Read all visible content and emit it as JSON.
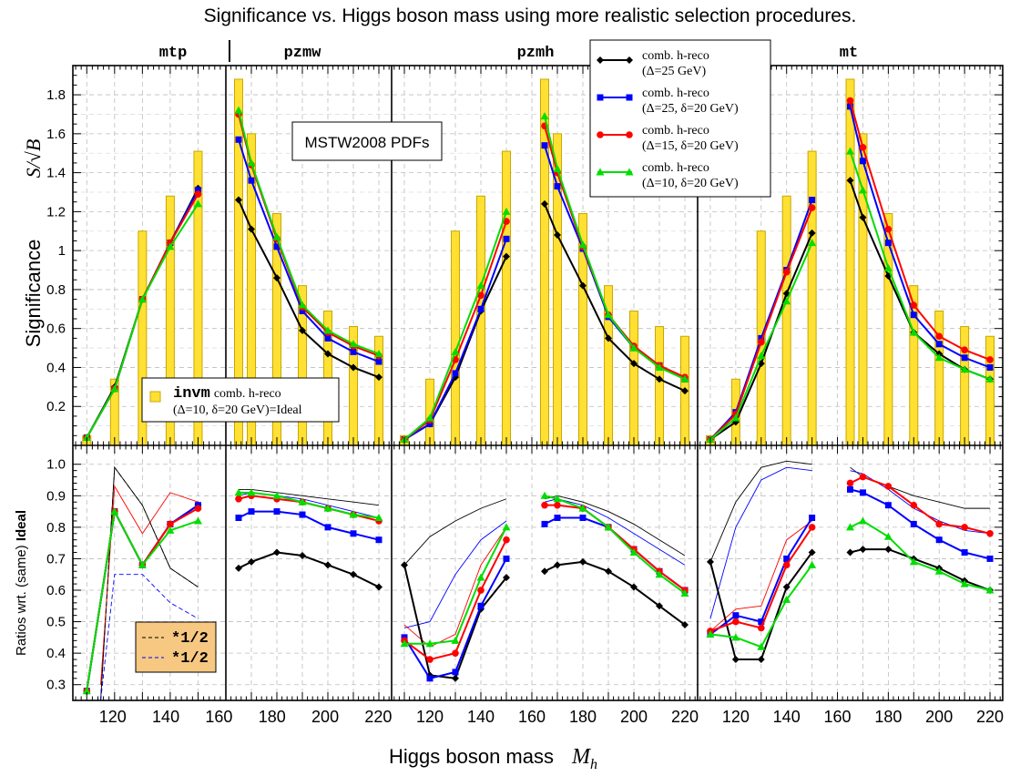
{
  "chart_data": {
    "type": "line",
    "title": "Significance vs. Higgs boson mass using more realistic selection procedures.",
    "xlabel": "Higgs boson mass",
    "xlabel_symbol": "M",
    "xlabel_sub": "h",
    "ylabel_top": "Significance",
    "ylabel_top_symbol": "S/√B",
    "ylabel_bottom": "Ratios wrt. (same)",
    "ylabel_bottom_bold": "Ideal",
    "annotation": "MSTW2008 PDFs",
    "panels": [
      "mtp",
      "pzmw",
      "pzmh",
      "mt"
    ],
    "x_ticks": [
      "120",
      "140",
      "160",
      "180",
      "200",
      "220"
    ],
    "x_ticks_last": [
      "120",
      "140",
      "160",
      "180",
      "200",
      "220"
    ],
    "top_y_ticks": [
      "0.2",
      "0.4",
      "0.6",
      "0.8",
      "1",
      "1.2",
      "1.4",
      "1.6",
      "1.8"
    ],
    "bottom_y_ticks": [
      "0.3",
      "0.4",
      "0.5",
      "0.6",
      "0.7",
      "0.8",
      "0.9",
      "1.0"
    ],
    "top_ylim": [
      0,
      1.95
    ],
    "bottom_ylim": [
      0.25,
      1.06
    ],
    "colors": {
      "black": "#000000",
      "blue": "#0000ff",
      "red": "#ff0000",
      "green": "#00dd00",
      "bar": "#ffe033",
      "bar_edge": "#c8a800"
    },
    "legend": {
      "entries": [
        {
          "line1": "comb. h-reco",
          "line2": "(Δ=25 GeV)",
          "color": "#000000",
          "marker": "diamond"
        },
        {
          "line1": "comb. h-reco",
          "line2": "(Δ=25, δ=20 GeV)",
          "color": "#0000ff",
          "marker": "square"
        },
        {
          "line1": "comb. h-reco",
          "line2": "(Δ=15, δ=20 GeV)",
          "color": "#ff0000",
          "marker": "circle"
        },
        {
          "line1": "comb. h-reco",
          "line2": "(Δ=10, δ=20 GeV)",
          "color": "#00dd00",
          "marker": "triangle"
        }
      ],
      "bar_entry": {
        "mono": "invm",
        "line1": "comb. h-reco",
        "line2": "(Δ=10, δ=20 GeV)=Ideal"
      },
      "ratio_entries": [
        {
          "mono": "*1/2",
          "color": "#000000"
        },
        {
          "mono": "*1/2",
          "color": "#0000ff"
        }
      ]
    },
    "bars": {
      "low_x": [
        110,
        120,
        130,
        140,
        150
      ],
      "low_values": [
        0.05,
        0.34,
        1.1,
        1.28,
        1.51
      ],
      "high_x": [
        165,
        170,
        180,
        190,
        200,
        210,
        220
      ],
      "high_values": [
        1.88,
        1.6,
        1.19,
        0.82,
        0.69,
        0.61,
        0.56
      ]
    },
    "top": {
      "mtp": {
        "x": [
          110,
          120,
          130,
          140,
          150
        ],
        "black": [
          0.04,
          0.3,
          0.75,
          1.04,
          1.32
        ],
        "blue": [
          0.04,
          0.29,
          0.75,
          1.04,
          1.31
        ],
        "red": [
          0.04,
          0.29,
          0.75,
          1.04,
          1.29
        ],
        "green": [
          0.04,
          0.29,
          0.75,
          1.02,
          1.24
        ]
      },
      "pzmw": {
        "x": [
          165,
          170,
          180,
          190,
          200,
          210,
          220
        ],
        "black": [
          1.26,
          1.11,
          0.86,
          0.59,
          0.47,
          0.4,
          0.35
        ],
        "blue": [
          1.57,
          1.36,
          1.02,
          0.69,
          0.55,
          0.48,
          0.43
        ],
        "red": [
          1.7,
          1.44,
          1.06,
          0.71,
          0.58,
          0.51,
          0.46
        ],
        "green": [
          1.72,
          1.45,
          1.07,
          0.72,
          0.59,
          0.52,
          0.47
        ]
      },
      "pzmh_low": {
        "x": [
          110,
          120,
          130,
          140,
          150
        ],
        "black": [
          0.03,
          0.11,
          0.35,
          0.69,
          0.97
        ],
        "blue": [
          0.03,
          0.11,
          0.37,
          0.7,
          1.06
        ],
        "red": [
          0.03,
          0.13,
          0.44,
          0.77,
          1.15
        ],
        "green": [
          0.03,
          0.14,
          0.48,
          0.82,
          1.2
        ]
      },
      "pzmh_high": {
        "x": [
          165,
          170,
          180,
          190,
          200,
          210,
          220
        ],
        "black": [
          1.24,
          1.08,
          0.82,
          0.55,
          0.42,
          0.34,
          0.28
        ],
        "blue": [
          1.54,
          1.33,
          1.01,
          0.66,
          0.5,
          0.41,
          0.34
        ],
        "red": [
          1.64,
          1.4,
          1.02,
          0.67,
          0.51,
          0.41,
          0.35
        ],
        "green": [
          1.69,
          1.42,
          1.03,
          0.67,
          0.5,
          0.4,
          0.34
        ]
      },
      "mt_low": {
        "x": [
          110,
          120,
          130,
          140,
          150
        ],
        "black": [
          0.03,
          0.12,
          0.42,
          0.78,
          1.09
        ],
        "blue": [
          0.03,
          0.17,
          0.55,
          0.9,
          1.26
        ],
        "red": [
          0.03,
          0.16,
          0.53,
          0.89,
          1.22
        ],
        "green": [
          0.03,
          0.14,
          0.46,
          0.74,
          1.04
        ]
      },
      "mt_high": {
        "x": [
          165,
          170,
          180,
          190,
          200,
          210,
          220
        ],
        "black": [
          1.36,
          1.17,
          0.87,
          0.58,
          0.47,
          0.39,
          0.34
        ],
        "blue": [
          1.74,
          1.46,
          1.04,
          0.67,
          0.52,
          0.45,
          0.4
        ],
        "red": [
          1.77,
          1.53,
          1.11,
          0.72,
          0.56,
          0.49,
          0.44
        ],
        "green": [
          1.51,
          1.31,
          0.91,
          0.58,
          0.45,
          0.39,
          0.34
        ]
      }
    },
    "bottom": {
      "mtp": {
        "x": [
          110,
          120,
          130,
          140,
          150
        ],
        "black": [
          0.28,
          0.85,
          0.68,
          0.81,
          0.87
        ],
        "blue": [
          0.28,
          0.85,
          0.68,
          0.81,
          0.87
        ],
        "red": [
          0.28,
          0.85,
          0.68,
          0.81,
          0.86
        ],
        "green": [
          0.28,
          0.85,
          0.68,
          0.79,
          0.82
        ],
        "thin_black_x": [
          115,
          120,
          130,
          140,
          150
        ],
        "thin_black": [
          0.25,
          0.99,
          0.87,
          0.67,
          0.61
        ],
        "thin_red_x": [
          115,
          120,
          130,
          140,
          150
        ],
        "thin_red": [
          0.3,
          0.93,
          0.78,
          0.91,
          0.88
        ],
        "dash_black_x": [
          115,
          120,
          130,
          140,
          150
        ],
        "dash_black": [
          0.25,
          0.99,
          0.87,
          0.67,
          0.61
        ],
        "dash_blue_x": [
          115,
          120,
          130,
          140,
          150
        ],
        "dash_blue": [
          0.25,
          0.65,
          0.65,
          0.56,
          0.51
        ]
      },
      "pzmw": {
        "x": [
          165,
          170,
          180,
          190,
          200,
          210,
          220
        ],
        "black": [
          0.67,
          0.69,
          0.72,
          0.71,
          0.68,
          0.65,
          0.61
        ],
        "blue": [
          0.83,
          0.85,
          0.85,
          0.84,
          0.8,
          0.78,
          0.76
        ],
        "red": [
          0.89,
          0.9,
          0.89,
          0.88,
          0.86,
          0.84,
          0.82
        ],
        "green": [
          0.91,
          0.91,
          0.9,
          0.88,
          0.86,
          0.84,
          0.83
        ],
        "thin_black": [
          0.92,
          0.92,
          0.91,
          0.9,
          0.89,
          0.88,
          0.87
        ],
        "thin_blue": [
          0.9,
          0.91,
          0.9,
          0.89,
          0.87,
          0.85,
          0.83
        ]
      },
      "pzmh_low": {
        "x": [
          110,
          120,
          130,
          140,
          150
        ],
        "black": [
          0.68,
          0.33,
          0.32,
          0.54,
          0.64
        ],
        "blue": [
          0.45,
          0.32,
          0.34,
          0.55,
          0.7
        ],
        "red": [
          0.44,
          0.38,
          0.4,
          0.6,
          0.76
        ],
        "green": [
          0.43,
          0.43,
          0.44,
          0.64,
          0.8
        ],
        "thin_black": [
          0.68,
          0.77,
          0.82,
          0.86,
          0.89
        ],
        "thin_blue": [
          0.48,
          0.5,
          0.65,
          0.76,
          0.82
        ],
        "thin_red": [
          0.49,
          0.42,
          0.46,
          0.68,
          0.8
        ]
      },
      "pzmh_high": {
        "x": [
          165,
          170,
          180,
          190,
          200,
          210,
          220
        ],
        "black": [
          0.66,
          0.68,
          0.69,
          0.66,
          0.61,
          0.55,
          0.49
        ],
        "blue": [
          0.81,
          0.83,
          0.83,
          0.8,
          0.73,
          0.66,
          0.6
        ],
        "red": [
          0.87,
          0.87,
          0.86,
          0.8,
          0.73,
          0.66,
          0.6
        ],
        "green": [
          0.9,
          0.89,
          0.86,
          0.8,
          0.72,
          0.65,
          0.59
        ],
        "thin_black": [
          0.89,
          0.9,
          0.88,
          0.85,
          0.81,
          0.76,
          0.71
        ],
        "thin_blue": [
          0.88,
          0.89,
          0.87,
          0.83,
          0.78,
          0.73,
          0.68
        ]
      },
      "mt_low": {
        "x": [
          110,
          120,
          130,
          140,
          150
        ],
        "black": [
          0.69,
          0.38,
          0.38,
          0.61,
          0.72
        ],
        "blue": [
          0.46,
          0.52,
          0.5,
          0.7,
          0.83
        ],
        "red": [
          0.47,
          0.5,
          0.48,
          0.68,
          0.8
        ],
        "green": [
          0.46,
          0.45,
          0.42,
          0.57,
          0.68
        ],
        "thin_black": [
          0.69,
          0.88,
          0.99,
          1.01,
          1.0
        ],
        "thin_blue": [
          0.51,
          0.8,
          0.95,
          0.99,
          0.98
        ],
        "thin_red": [
          0.47,
          0.54,
          0.55,
          0.76,
          0.82
        ]
      },
      "mt_high": {
        "x": [
          165,
          170,
          180,
          190,
          200,
          210,
          220
        ],
        "black": [
          0.72,
          0.73,
          0.73,
          0.7,
          0.67,
          0.63,
          0.6
        ],
        "blue": [
          0.92,
          0.91,
          0.87,
          0.81,
          0.76,
          0.72,
          0.7
        ],
        "red": [
          0.94,
          0.96,
          0.93,
          0.87,
          0.81,
          0.8,
          0.78
        ],
        "green": [
          0.8,
          0.82,
          0.77,
          0.69,
          0.66,
          0.62,
          0.6
        ],
        "thin_black": [
          0.99,
          0.96,
          0.93,
          0.9,
          0.88,
          0.86,
          0.86
        ],
        "thin_blue": [
          0.98,
          0.97,
          0.92,
          0.86,
          0.82,
          0.79,
          0.78
        ]
      }
    }
  }
}
